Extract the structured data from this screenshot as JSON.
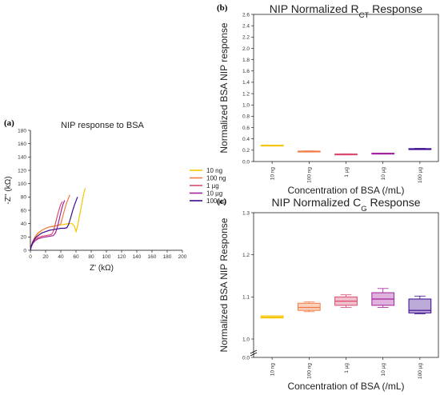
{
  "panels": [
    {
      "letter": "(a)"
    },
    {
      "letter": "(b)"
    },
    {
      "letter": "(c)"
    }
  ],
  "chart_data": [
    {
      "type": "line",
      "title": "NIP response to BSA",
      "xlabel": "Z' (kΩ)",
      "ylabel": "-Z'' (kΩ)",
      "xlim": [
        0,
        200
      ],
      "ylim": [
        0,
        180
      ],
      "xticks": [
        0,
        20,
        40,
        60,
        80,
        100,
        120,
        140,
        160,
        180,
        200
      ],
      "yticks": [
        0,
        20,
        40,
        60,
        80,
        100,
        120,
        140,
        160,
        180
      ],
      "legend_position": "right",
      "series": [
        {
          "name": "10 ng",
          "color": "#f5c400",
          "x": [
            0,
            1,
            3,
            6,
            10,
            15,
            20,
            25,
            30,
            35,
            40,
            45,
            50,
            55,
            58,
            60,
            62,
            64,
            66,
            68,
            70,
            72
          ],
          "y": [
            0,
            6,
            13,
            19,
            25,
            30,
            33,
            35,
            36,
            37,
            38,
            39,
            40,
            40,
            36,
            28,
            36,
            48,
            60,
            72,
            84,
            93
          ]
        },
        {
          "name": "100 ng",
          "color": "#f07a44",
          "x": [
            0,
            1,
            3,
            6,
            10,
            15,
            20,
            25,
            30,
            35,
            38,
            40,
            42,
            44,
            46,
            48,
            50,
            52
          ],
          "y": [
            0,
            6,
            13,
            20,
            26,
            30,
            33,
            35,
            36,
            37,
            38,
            40,
            48,
            57,
            65,
            72,
            78,
            83
          ]
        },
        {
          "name": "1 µg",
          "color": "#d94a6e",
          "x": [
            0,
            1,
            3,
            6,
            10,
            15,
            20,
            25,
            28,
            30,
            32,
            34,
            36,
            38,
            40,
            42
          ],
          "y": [
            0,
            5,
            11,
            16,
            19,
            21,
            22,
            23,
            24,
            28,
            36,
            45,
            54,
            62,
            69,
            73
          ]
        },
        {
          "name": "10 µg",
          "color": "#a1239c",
          "x": [
            0,
            1,
            3,
            6,
            10,
            15,
            20,
            25,
            30,
            33,
            35,
            37,
            39,
            41,
            43,
            45
          ],
          "y": [
            0,
            5,
            10,
            14,
            17,
            19,
            20,
            21,
            22,
            26,
            33,
            42,
            52,
            61,
            69,
            75
          ]
        },
        {
          "name": "100 µg",
          "color": "#3c0a8f",
          "x": [
            0,
            1,
            3,
            6,
            10,
            15,
            20,
            25,
            30,
            35,
            40,
            45,
            48,
            50,
            52,
            54,
            56,
            58,
            60,
            62
          ],
          "y": [
            0,
            6,
            12,
            18,
            22,
            26,
            28,
            30,
            31,
            32,
            33,
            33,
            34,
            38,
            45,
            53,
            61,
            68,
            74,
            80
          ]
        }
      ]
    },
    {
      "type": "box",
      "title_main": "NIP Normalized R",
      "title_sub": "CT",
      "title_end": " Response",
      "xlabel": "Concentration of BSA (/mL)",
      "ylabel": "Normalized BSA NIP response",
      "ylim": [
        0,
        2.6
      ],
      "yticks": [
        "0.0",
        "0.2",
        "0.4",
        "0.6",
        "0.8",
        "1.0",
        "1.2",
        "1.4",
        "1.6",
        "1.8",
        "2.0",
        "2.2",
        "2.4",
        "2.6"
      ],
      "categories": [
        "10 ng",
        "100 ng",
        "1 µg",
        "10 µg",
        "100 µg"
      ],
      "boxes": [
        {
          "color": "#f5c400",
          "min": 0.285,
          "q1": 0.285,
          "median": 0.287,
          "q3": 0.29,
          "max": 0.29
        },
        {
          "color": "#f07a44",
          "min": 0.175,
          "q1": 0.178,
          "median": 0.181,
          "q3": 0.185,
          "max": 0.188
        },
        {
          "color": "#d94a6e",
          "min": 0.125,
          "q1": 0.128,
          "median": 0.131,
          "q3": 0.134,
          "max": 0.137
        },
        {
          "color": "#a1239c",
          "min": 0.138,
          "q1": 0.141,
          "median": 0.144,
          "q3": 0.148,
          "max": 0.15
        },
        {
          "color": "#3c0a8f",
          "min": 0.215,
          "q1": 0.218,
          "median": 0.222,
          "q3": 0.228,
          "max": 0.232
        }
      ]
    },
    {
      "type": "box",
      "title_main": "NIP Normalized C",
      "title_sub": "G",
      "title_end": " Response",
      "xlabel": "Concentration of BSA (/mL)",
      "ylabel": "Normalized BSA NIP Response",
      "axis_break": true,
      "yticks": [
        "0.0",
        "1.0",
        "1.1",
        "1.2",
        "1.3"
      ],
      "categories": [
        "10 ng",
        "100 ng",
        "1 µg",
        "10 µg",
        "100 µg"
      ],
      "boxes": [
        {
          "color": "#f5c400",
          "min": 1.05,
          "q1": 1.05,
          "median": 1.052,
          "q3": 1.055,
          "max": 1.055
        },
        {
          "color": "#f07a44",
          "min": 1.065,
          "q1": 1.068,
          "median": 1.075,
          "q3": 1.085,
          "max": 1.088
        },
        {
          "color": "#d94a6e",
          "min": 1.075,
          "q1": 1.08,
          "median": 1.09,
          "q3": 1.1,
          "max": 1.105
        },
        {
          "color": "#a1239c",
          "min": 1.075,
          "q1": 1.08,
          "median": 1.095,
          "q3": 1.11,
          "max": 1.12
        },
        {
          "color": "#3c0a8f",
          "min": 1.06,
          "q1": 1.062,
          "median": 1.068,
          "q3": 1.095,
          "max": 1.102
        }
      ]
    }
  ]
}
